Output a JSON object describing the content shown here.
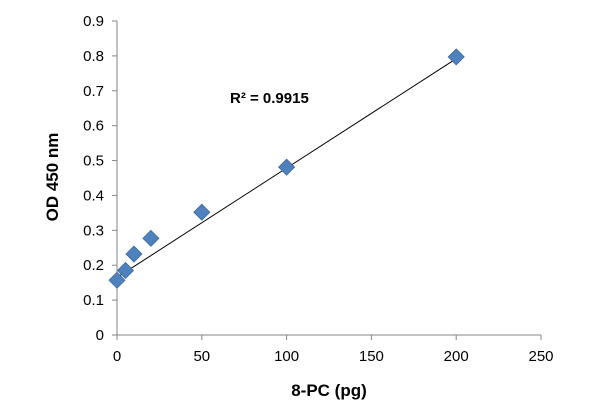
{
  "chart_data": {
    "type": "scatter",
    "title": "",
    "xlabel": "8-PC (pg)",
    "ylabel": "OD 450 nm",
    "xlim": [
      0,
      250
    ],
    "ylim": [
      0,
      0.9
    ],
    "x_ticks": [
      "0",
      "50",
      "100",
      "150",
      "200",
      "250"
    ],
    "y_ticks": [
      "0",
      "0.1",
      "0.2",
      "0.3",
      "0.4",
      "0.5",
      "0.6",
      "0.7",
      "0.8",
      "0.9"
    ],
    "grid": false,
    "legend": "none",
    "marker": "diamond",
    "marker_color": "#4F81BD",
    "trendline_color": "#000000",
    "series": [
      {
        "x": [
          0,
          5,
          10,
          20,
          50,
          100,
          200
        ],
        "y": [
          0.157,
          0.185,
          0.232,
          0.277,
          0.352,
          0.481,
          0.797
        ]
      }
    ],
    "trendline": {
      "type": "linear",
      "x_range": [
        0,
        200
      ],
      "y_range": [
        0.165,
        0.792
      ]
    },
    "annotations": [
      {
        "text": "R² = 0.9915"
      }
    ]
  }
}
